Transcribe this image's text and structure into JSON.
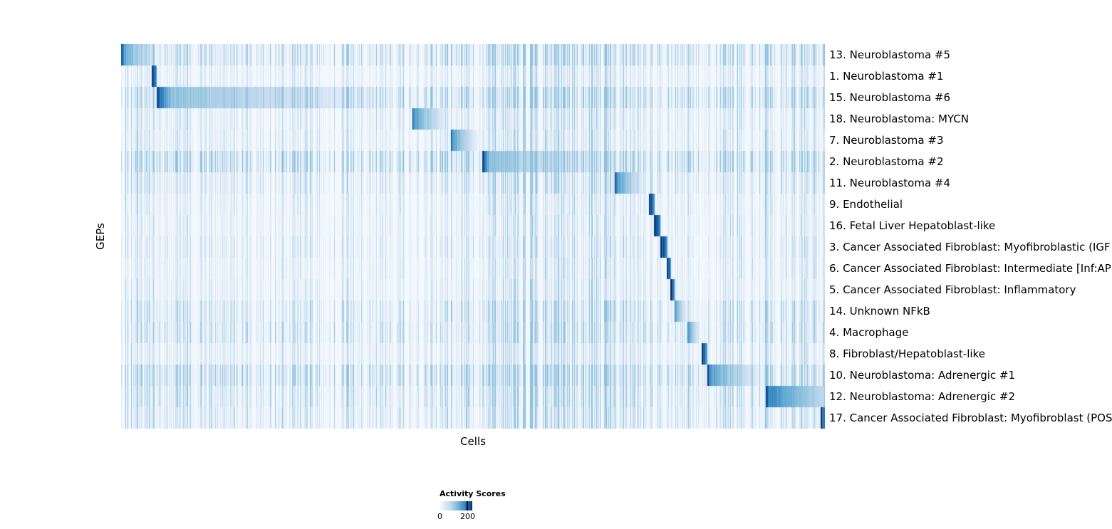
{
  "figure": {
    "x_axis_label": "Cells",
    "y_axis_label": "GEPs"
  },
  "legend": {
    "title": "Activity Scores",
    "min_label": "0",
    "tick_label": "200",
    "tick_position": 0.82
  },
  "chart_data": {
    "type": "heatmap",
    "title": "",
    "xlabel": "Cells",
    "ylabel": "GEPs",
    "colormap": "Blues",
    "value_range": [
      0,
      200
    ],
    "grid": false,
    "legend_position": "bottom",
    "description": "Cells (columns) ordered by assigned gene expression program; each GEP row shows a dark-to-light activity block over its cells plus sparse background activity stripes.",
    "color_stops": [
      {
        "v": 0.0,
        "c": "#f7fbff"
      },
      {
        "v": 0.15,
        "c": "#deebf7"
      },
      {
        "v": 0.3,
        "c": "#c6dbef"
      },
      {
        "v": 0.45,
        "c": "#9ecae1"
      },
      {
        "v": 0.6,
        "c": "#6baed6"
      },
      {
        "v": 0.72,
        "c": "#4292c6"
      },
      {
        "v": 0.85,
        "c": "#2171b5"
      },
      {
        "v": 0.93,
        "c": "#08519c"
      },
      {
        "v": 1.0,
        "c": "#08306b"
      }
    ],
    "column_bands": [
      {
        "start": 0.0,
        "end": 0.051,
        "mult": 1.5
      },
      {
        "start": 0.513,
        "end": 0.7,
        "mult": 1.7
      },
      {
        "start": 0.7,
        "end": 0.75,
        "mult": 1.25
      },
      {
        "start": 0.83,
        "end": 1.0,
        "mult": 1.6
      }
    ],
    "rows": [
      {
        "label": "13. Neuroblastoma #5",
        "block_start": 0.0,
        "block_end": 0.051,
        "noise": 0.7
      },
      {
        "label": "1. Neuroblastoma #1",
        "block_start": 0.0435,
        "block_end": 0.05,
        "noise": 0.35
      },
      {
        "label": "15. Neuroblastoma #6",
        "block_start": 0.05,
        "block_end": 0.412,
        "noise": 0.8
      },
      {
        "label": "18. Neuroblastoma: MYCN",
        "block_start": 0.413,
        "block_end": 0.467,
        "noise": 0.4
      },
      {
        "label": "7. Neuroblastoma #3",
        "block_start": 0.468,
        "block_end": 0.51,
        "noise": 0.4
      },
      {
        "label": "2. Neuroblastoma #2",
        "block_start": 0.513,
        "block_end": 0.7,
        "noise": 0.9
      },
      {
        "label": "11. Neuroblastoma #4",
        "block_start": 0.701,
        "block_end": 0.748,
        "noise": 0.5
      },
      {
        "label": "9. Endothelial",
        "block_start": 0.75,
        "block_end": 0.758,
        "noise": 0.35
      },
      {
        "label": "16. Fetal Liver Hepatoblast-like",
        "block_start": 0.757,
        "block_end": 0.766,
        "noise": 0.35
      },
      {
        "label": "3. Cancer Associated Fibroblast: Myofibroblastic (IGF",
        "block_start": 0.766,
        "block_end": 0.776,
        "noise": 0.4
      },
      {
        "label": "6. Cancer Associated Fibroblast: Intermediate [Inf:AP",
        "block_start": 0.775,
        "block_end": 0.781,
        "noise": 0.35
      },
      {
        "label": "5. Cancer Associated Fibroblast: Inflammatory",
        "block_start": 0.78,
        "block_end": 0.786,
        "noise": 0.35
      },
      {
        "label": "14. Unknown NFkB",
        "block_start": 0.786,
        "block_end": 0.804,
        "noise": 0.55
      },
      {
        "label": "4. Macrophage",
        "block_start": 0.804,
        "block_end": 0.823,
        "noise": 0.6
      },
      {
        "label": "8. Fibroblast/Hepatoblast-like",
        "block_start": 0.824,
        "block_end": 0.832,
        "noise": 0.4
      },
      {
        "label": "10. Neuroblastoma: Adrenergic #1",
        "block_start": 0.832,
        "block_end": 0.914,
        "noise": 0.85
      },
      {
        "label": "12. Neuroblastoma: Adrenergic #2",
        "block_start": 0.915,
        "block_end": 1.0,
        "noise": 0.6,
        "fade_floor": 0.3
      },
      {
        "label": "17. Cancer Associated Fibroblast: Myofibroblast (POS",
        "block_start": 0.993,
        "block_end": 1.0,
        "noise": 0.5
      }
    ]
  }
}
